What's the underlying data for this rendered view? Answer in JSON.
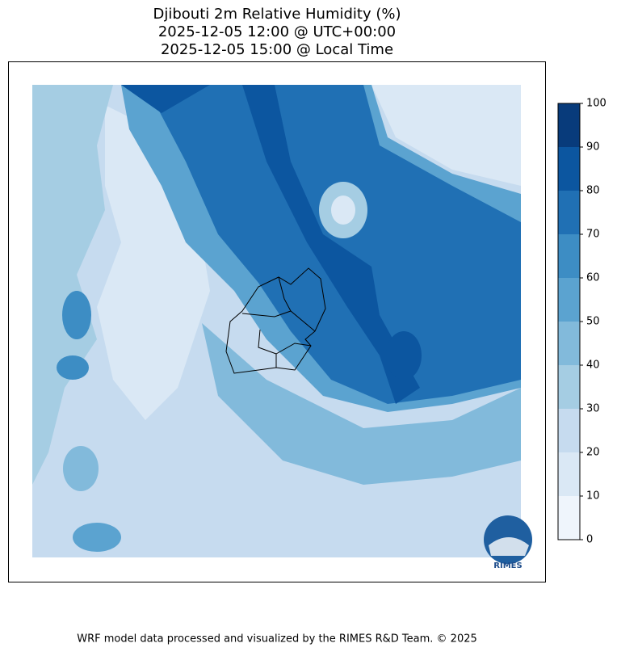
{
  "title": [
    "Djibouti 2m Relative Humidity (%)",
    "2025-12-05 12:00 @ UTC+00:00",
    "2025-12-05 15:00 @ Local Time"
  ],
  "colorbar": {
    "levels": [
      0,
      10,
      20,
      30,
      40,
      50,
      60,
      70,
      80,
      90,
      100
    ],
    "colors": [
      "#eff5fc",
      "#dae8f5",
      "#c6dbef",
      "#a5cde3",
      "#82badb",
      "#5ba3d0",
      "#3d8dc4",
      "#2070b4",
      "#0c56a0",
      "#083b7b"
    ]
  },
  "logo": "RIMES",
  "footer": "WRF model data processed and visualized by the RIMES R&D Team. © 2025"
}
